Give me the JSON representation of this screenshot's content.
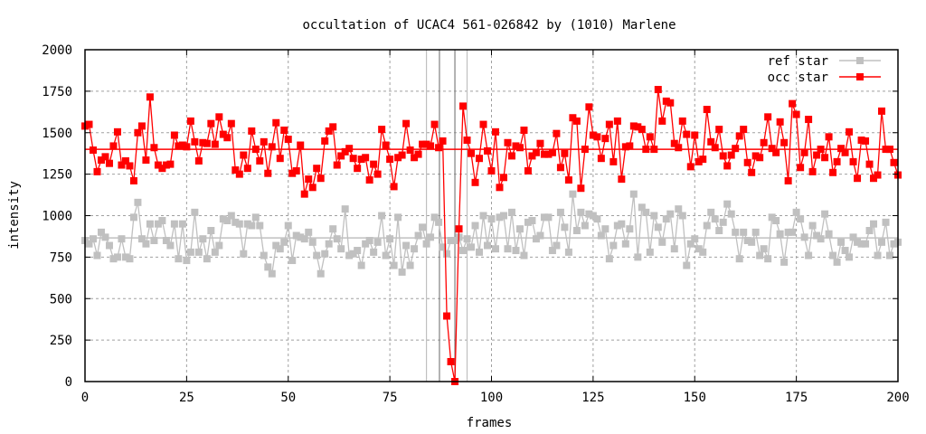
{
  "chart_data": {
    "type": "line",
    "title": "occultation of UCAC4 561-026842 by (1010) Marlene",
    "xlabel": "frames",
    "ylabel": "intensity",
    "xlim": [
      0,
      200
    ],
    "ylim": [
      0,
      2000
    ],
    "xticks": [
      0,
      25,
      50,
      75,
      100,
      125,
      150,
      175,
      200
    ],
    "yticks": [
      0,
      250,
      500,
      750,
      1000,
      1250,
      1500,
      1750,
      2000
    ],
    "grid": true,
    "legend_position": "top-right",
    "vertical_markers": [
      {
        "frame": 84,
        "color": "#c0c0c0"
      },
      {
        "frame": 87.2,
        "color": "#808080"
      },
      {
        "frame": 91,
        "color": "#808080"
      },
      {
        "frame": 94,
        "color": "#c0c0c0"
      }
    ],
    "series": [
      {
        "name": "ref star",
        "color": "#c0c0c0",
        "mean": 866,
        "values": [
          850,
          830,
          860,
          760,
          900,
          870,
          820,
          740,
          750,
          860,
          750,
          740,
          990,
          1080,
          860,
          830,
          950,
          850,
          950,
          970,
          850,
          820,
          950,
          740,
          950,
          730,
          780,
          1020,
          780,
          860,
          740,
          910,
          780,
          820,
          980,
          970,
          1000,
          960,
          950,
          770,
          950,
          940,
          990,
          940,
          760,
          690,
          650,
          820,
          800,
          840,
          940,
          730,
          880,
          870,
          860,
          900,
          840,
          760,
          650,
          770,
          830,
          920,
          860,
          800,
          1040,
          760,
          770,
          790,
          700,
          830,
          850,
          780,
          840,
          1000,
          760,
          860,
          700,
          990,
          660,
          820,
          700,
          800,
          880,
          930,
          830,
          870,
          990,
          960,
          810,
          770,
          850,
          850,
          870,
          790,
          860,
          810,
          940,
          780,
          1000,
          820,
          980,
          800,
          990,
          1000,
          800,
          1020,
          790,
          920,
          760,
          960,
          970,
          860,
          880,
          990,
          990,
          790,
          820,
          1020,
          930,
          780,
          1130,
          910,
          1020,
          940,
          1010,
          1000,
          980,
          880,
          920,
          740,
          820,
          940,
          950,
          830,
          920,
          1130,
          750,
          1050,
          1020,
          780,
          1000,
          930,
          840,
          980,
          1010,
          800,
          1040,
          1000,
          700,
          830,
          860,
          800,
          780,
          940,
          1020,
          980,
          910,
          960,
          1070,
          1010,
          900,
          740,
          900,
          850,
          840,
          900,
          760,
          800,
          740,
          990,
          970,
          890,
          720,
          900,
          900,
          1020,
          980,
          870,
          760,
          940,
          880,
          860,
          1010,
          890,
          760,
          720,
          840,
          790,
          750,
          870,
          840,
          830,
          830,
          910,
          950,
          760,
          840,
          960,
          760,
          830,
          840
        ]
      },
      {
        "name": "occ star",
        "color": "#ff0000",
        "mean": 1400,
        "values": [
          1540,
          1550,
          1395,
          1265,
          1335,
          1355,
          1315,
          1420,
          1505,
          1305,
          1330,
          1300,
          1210,
          1500,
          1540,
          1335,
          1715,
          1410,
          1305,
          1285,
          1305,
          1310,
          1485,
          1420,
          1425,
          1415,
          1570,
          1445,
          1330,
          1440,
          1435,
          1555,
          1430,
          1595,
          1490,
          1470,
          1555,
          1275,
          1250,
          1365,
          1285,
          1510,
          1400,
          1330,
          1445,
          1255,
          1415,
          1560,
          1345,
          1515,
          1460,
          1255,
          1270,
          1425,
          1130,
          1220,
          1170,
          1285,
          1225,
          1450,
          1510,
          1535,
          1305,
          1360,
          1385,
          1405,
          1345,
          1285,
          1340,
          1350,
          1215,
          1310,
          1250,
          1520,
          1425,
          1340,
          1175,
          1350,
          1365,
          1555,
          1395,
          1350,
          1370,
          1430,
          1430,
          1420,
          1550,
          1410,
          1450,
          395,
          120,
          0,
          920,
          1660,
          1455,
          1375,
          1200,
          1345,
          1550,
          1390,
          1270,
          1505,
          1170,
          1230,
          1440,
          1360,
          1420,
          1410,
          1515,
          1270,
          1360,
          1380,
          1435,
          1370,
          1370,
          1380,
          1495,
          1290,
          1375,
          1215,
          1590,
          1570,
          1165,
          1400,
          1655,
          1485,
          1475,
          1345,
          1465,
          1550,
          1325,
          1570,
          1220,
          1415,
          1420,
          1540,
          1535,
          1520,
          1400,
          1475,
          1400,
          1760,
          1570,
          1690,
          1680,
          1435,
          1410,
          1570,
          1490,
          1295,
          1485,
          1325,
          1340,
          1640,
          1445,
          1410,
          1520,
          1360,
          1300,
          1365,
          1405,
          1480,
          1520,
          1320,
          1260,
          1360,
          1350,
          1440,
          1595,
          1405,
          1380,
          1565,
          1440,
          1210,
          1675,
          1610,
          1290,
          1380,
          1580,
          1265,
          1365,
          1400,
          1350,
          1475,
          1260,
          1325,
          1405,
          1380,
          1505,
          1325,
          1225,
          1455,
          1450,
          1310,
          1225,
          1245,
          1630,
          1400,
          1400,
          1320,
          1245
        ]
      }
    ]
  }
}
